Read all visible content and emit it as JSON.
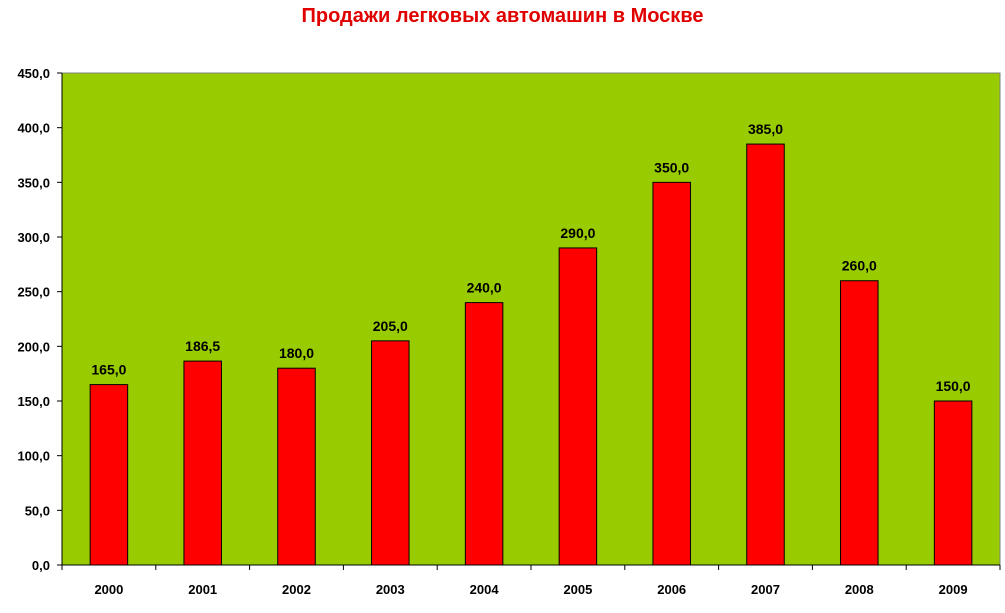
{
  "chart_data": {
    "type": "bar",
    "title": "Продажи легковых автомашин в Москве",
    "xlabel": "",
    "ylabel": "",
    "categories": [
      "2000",
      "2001",
      "2002",
      "2003",
      "2004",
      "2005",
      "2006",
      "2007",
      "2008",
      "2009"
    ],
    "values": [
      165.0,
      186.5,
      180.0,
      205.0,
      240.0,
      290.0,
      350.0,
      385.0,
      260.0,
      150.0
    ],
    "value_labels": [
      "165,0",
      "186,5",
      "180,0",
      "205,0",
      "240,0",
      "290,0",
      "350,0",
      "385,0",
      "260,0",
      "150,0"
    ],
    "ylim": [
      0,
      450
    ],
    "yticks": [
      0,
      50,
      100,
      150,
      200,
      250,
      300,
      350,
      400,
      450
    ],
    "ytick_labels": [
      "0,0",
      "50,0",
      "100,0",
      "150,0",
      "200,0",
      "250,0",
      "300,0",
      "350,0",
      "400,0",
      "450,0"
    ],
    "grid": false,
    "legend": "none",
    "colors": {
      "plot_background": "#99cc00",
      "bar_fill": "#ff0000",
      "bar_stroke": "#000000",
      "title": "#e00000"
    }
  }
}
